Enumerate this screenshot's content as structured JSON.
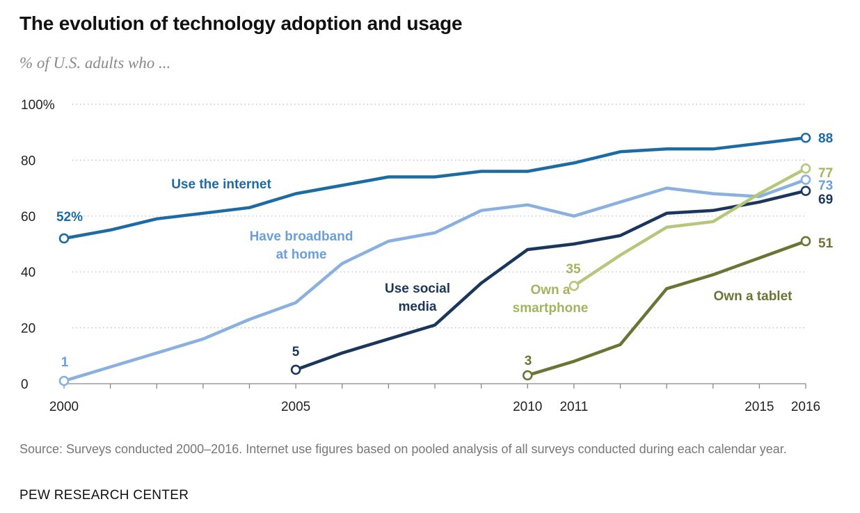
{
  "header": {
    "title": "The evolution of technology adoption and usage",
    "subtitle": "% of U.S. adults who ..."
  },
  "footer": {
    "source": "Source: Surveys conducted 2000–2016. Internet use figures based on pooled analysis of all surveys conducted during each calendar year.",
    "organization": "PEW RESEARCH CENTER"
  },
  "chart_data": {
    "type": "line",
    "title": "The evolution of technology adoption and usage",
    "ylabel": "% of U.S. adults who ...",
    "xlabel": "",
    "xlim": [
      2000,
      2016
    ],
    "ylim": [
      0,
      100
    ],
    "grid": true,
    "y_ticks": [
      0,
      20,
      40,
      60,
      80,
      100
    ],
    "y_tick_labels": [
      "0",
      "20",
      "40",
      "60",
      "80",
      "100%"
    ],
    "x_labeled_ticks": [
      2000,
      2005,
      2010,
      2011,
      2015,
      2016
    ],
    "x_minor_ticks": [
      2000,
      2001,
      2002,
      2003,
      2004,
      2005,
      2006,
      2007,
      2008,
      2009,
      2010,
      2011,
      2012,
      2013,
      2014,
      2015,
      2016
    ],
    "series": [
      {
        "name": "Use the internet",
        "label_lines": [
          "Use the internet"
        ],
        "color": "#1d6ba3",
        "x": [
          2000,
          2001,
          2002,
          2003,
          2004,
          2005,
          2006,
          2007,
          2008,
          2009,
          2010,
          2011,
          2012,
          2013,
          2014,
          2015,
          2016
        ],
        "values": [
          52,
          55,
          59,
          61,
          63,
          68,
          71,
          74,
          74,
          76,
          76,
          79,
          83,
          84,
          84,
          86,
          88
        ],
        "start_label": "52%",
        "end_label": "88"
      },
      {
        "name": "Have broadband at home",
        "label_lines": [
          "Have broadband",
          "at home"
        ],
        "color": "#8ab0e0",
        "x": [
          2000,
          2001,
          2002,
          2003,
          2004,
          2005,
          2006,
          2007,
          2008,
          2009,
          2010,
          2011,
          2012,
          2013,
          2014,
          2015,
          2016
        ],
        "values": [
          1,
          6,
          11,
          16,
          23,
          29,
          43,
          51,
          54,
          62,
          64,
          60,
          65,
          70,
          68,
          67,
          73
        ],
        "start_label": "1",
        "end_label": "73"
      },
      {
        "name": "Use social media",
        "label_lines": [
          "Use social",
          "media"
        ],
        "color": "#1b365d",
        "x": [
          2005,
          2006,
          2007,
          2008,
          2009,
          2010,
          2011,
          2012,
          2013,
          2014,
          2015,
          2016
        ],
        "values": [
          5,
          11,
          16,
          21,
          36,
          48,
          50,
          53,
          61,
          62,
          65,
          69
        ],
        "start_label": "5",
        "end_label": "69"
      },
      {
        "name": "Own a smartphone",
        "label_lines": [
          "Own a",
          "smartphone"
        ],
        "color": "#b6c77c",
        "x": [
          2011,
          2012,
          2013,
          2014,
          2015,
          2016
        ],
        "values": [
          35,
          46,
          56,
          58,
          68,
          77
        ],
        "start_label": "35",
        "end_label": "77"
      },
      {
        "name": "Own a tablet",
        "label_lines": [
          "Own a tablet"
        ],
        "color": "#6a7434",
        "x": [
          2010,
          2011,
          2012,
          2013,
          2014,
          2015,
          2016
        ],
        "values": [
          3,
          8,
          14,
          34,
          39,
          45,
          51
        ],
        "start_label": "3",
        "end_label": "51"
      }
    ],
    "label_colors": {
      "Use the internet": "#1d6ba3",
      "Have broadband at home": "#6a9fd8",
      "Use social media": "#1b365d",
      "Own a smartphone": "#a3b45e",
      "Own a tablet": "#6a7434"
    }
  }
}
